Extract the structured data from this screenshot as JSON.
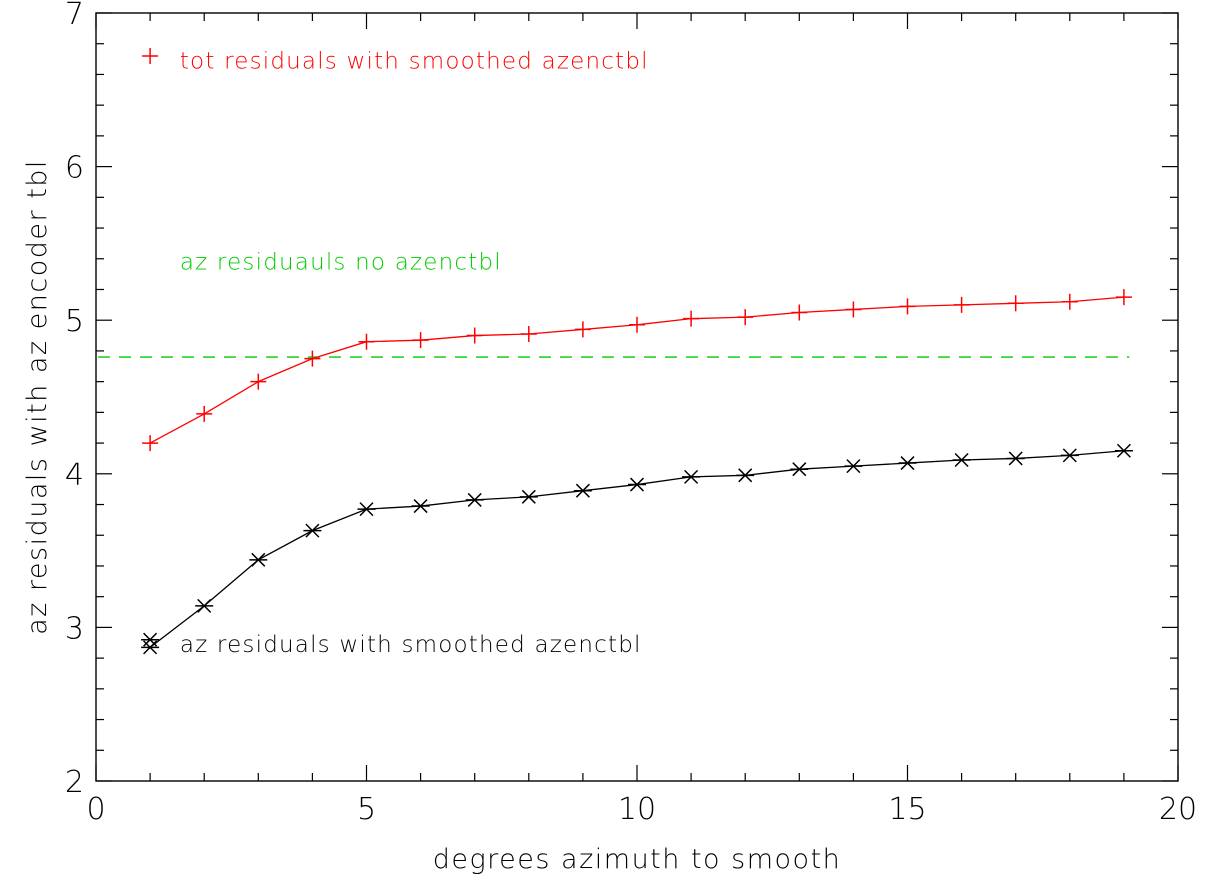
{
  "chart_data": {
    "type": "line",
    "xlabel": "degrees azimuth to smooth",
    "ylabel": "az residuals with az encoder tbl",
    "xlim": [
      0,
      20
    ],
    "ylim": [
      2,
      7
    ],
    "x_ticks": [
      "0",
      "5",
      "10",
      "15",
      "20"
    ],
    "y_ticks": [
      "2",
      "3",
      "4",
      "5",
      "6",
      "7"
    ],
    "grid": false,
    "series": [
      {
        "name": "tot residuals with smoothed azenctbl",
        "color": "#ff0000",
        "marker": "plus",
        "x": [
          1,
          2,
          3,
          4,
          5,
          6,
          7,
          8,
          9,
          10,
          11,
          12,
          13,
          14,
          15,
          16,
          17,
          18,
          19
        ],
        "y": [
          4.2,
          4.39,
          4.6,
          4.75,
          4.86,
          4.87,
          4.9,
          4.91,
          4.94,
          4.97,
          5.01,
          5.02,
          5.05,
          5.07,
          5.09,
          5.1,
          5.11,
          5.12,
          5.15
        ]
      },
      {
        "name": "az  residuals with smoothed azenctbl",
        "color": "#000000",
        "marker": "asterisk",
        "x": [
          1,
          2,
          3,
          4,
          5,
          6,
          7,
          8,
          9,
          10,
          11,
          12,
          13,
          14,
          15,
          16,
          17,
          18,
          19
        ],
        "y": [
          2.87,
          3.14,
          3.44,
          3.63,
          3.77,
          3.79,
          3.83,
          3.85,
          3.89,
          3.93,
          3.98,
          3.99,
          4.03,
          4.05,
          4.07,
          4.09,
          4.1,
          4.12,
          4.15
        ]
      },
      {
        "name": "az  residuauls no azenctbl",
        "color": "#00cc00",
        "style": "dashed",
        "x": [
          0,
          19.1
        ],
        "y": [
          4.76,
          4.76
        ]
      }
    ],
    "legend_samples": {
      "red": "plus",
      "black": "asterisk"
    }
  }
}
